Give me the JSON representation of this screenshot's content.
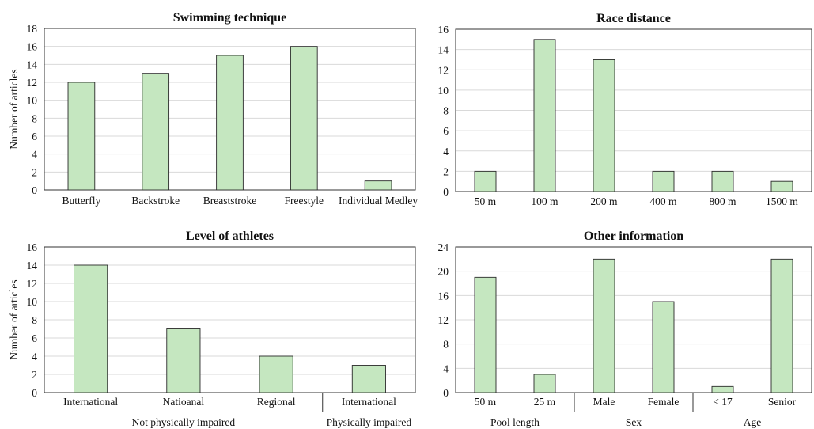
{
  "colors": {
    "bar_fill": "#c5e7c0",
    "grid": "#d9d9d9",
    "frame": "#333333"
  },
  "chart_data": [
    {
      "type": "bar",
      "title": "Swimming technique",
      "ylabel": "Number of articles",
      "categories": [
        "Butterfly",
        "Backstroke",
        "Breaststroke",
        "Freestyle",
        "Individual Medley"
      ],
      "values": [
        12,
        13,
        15,
        16,
        1
      ],
      "ylim": [
        0,
        18
      ],
      "yticks": [
        0,
        2,
        4,
        6,
        8,
        10,
        12,
        14,
        16,
        18
      ],
      "grid": true,
      "groups": []
    },
    {
      "type": "bar",
      "title": "Race distance",
      "ylabel": "",
      "categories": [
        "50 m",
        "100 m",
        "200 m",
        "400 m",
        "800 m",
        "1500 m"
      ],
      "values": [
        2,
        15,
        13,
        2,
        2,
        1
      ],
      "ylim": [
        0,
        16
      ],
      "yticks": [
        0,
        2,
        4,
        6,
        8,
        10,
        12,
        14,
        16
      ],
      "grid": true,
      "groups": []
    },
    {
      "type": "bar",
      "title": "Level of athletes",
      "ylabel": "Number of articles",
      "categories": [
        "International",
        "Natioanal",
        "Regional",
        "International"
      ],
      "values": [
        14,
        7,
        4,
        3
      ],
      "ylim": [
        0,
        16
      ],
      "yticks": [
        0,
        2,
        4,
        6,
        8,
        10,
        12,
        14,
        16
      ],
      "grid": true,
      "groups": [
        {
          "label": "Not physically impaired",
          "span": [
            0,
            2
          ]
        },
        {
          "label": "Physically impaired",
          "span": [
            3,
            3
          ]
        }
      ]
    },
    {
      "type": "bar",
      "title": "Other information",
      "ylabel": "",
      "categories": [
        "50 m",
        "25 m",
        "Male",
        "Female",
        "< 17",
        "Senior"
      ],
      "values": [
        19,
        3,
        22,
        15,
        1,
        22
      ],
      "ylim": [
        0,
        24
      ],
      "yticks": [
        0,
        4,
        8,
        12,
        16,
        20,
        24
      ],
      "grid": true,
      "groups": [
        {
          "label": "Pool length",
          "span": [
            0,
            1
          ]
        },
        {
          "label": "Sex",
          "span": [
            2,
            3
          ]
        },
        {
          "label": "Age",
          "span": [
            4,
            5
          ]
        }
      ]
    }
  ]
}
